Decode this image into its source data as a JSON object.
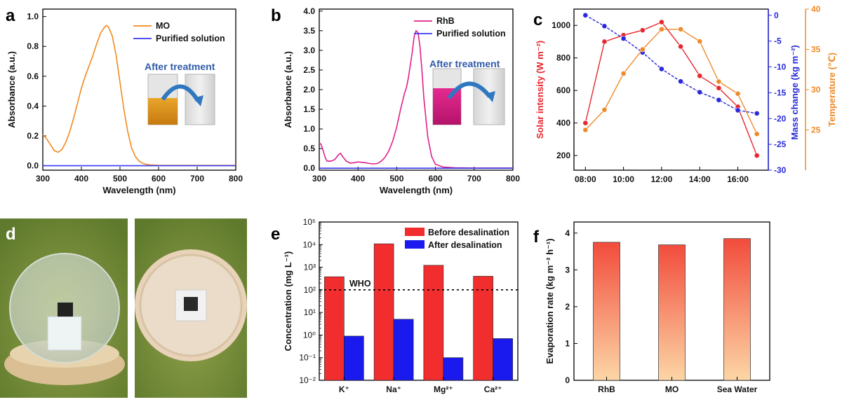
{
  "panels": {
    "a": "a",
    "b": "b",
    "c": "c",
    "d": "d",
    "e": "e",
    "f": "f"
  },
  "colors": {
    "mo": "#f28a1f",
    "purified": "#3a3af0",
    "rhb": "#e0208a",
    "solar": "#e8262d",
    "mass": "#2929d9",
    "temp": "#ef8a2a",
    "before": "#f22d2d",
    "after": "#1a1aee",
    "bar_top": "#f24c3c",
    "bar_bottom": "#fcd6a6",
    "panel_c_left": "#e8262d",
    "panel_c_right": "#ef8a2a",
    "panel_c_mid": "#2929d9"
  },
  "chart_data": [
    {
      "id": "a",
      "type": "line",
      "xlabel": "Wavelength (nm)",
      "ylabel": "Absorbance (a.u.)",
      "xlim": [
        300,
        800
      ],
      "ylim": [
        -0.03,
        1.05
      ],
      "xticks": [
        300,
        400,
        500,
        600,
        700,
        800
      ],
      "yticks": [
        0.0,
        0.2,
        0.4,
        0.6,
        0.8,
        1.0
      ],
      "legend_placement": "top-right",
      "annotation": "After treatment",
      "series": [
        {
          "name": "MO",
          "color_key": "mo",
          "x": [
            300,
            310,
            320,
            330,
            340,
            350,
            360,
            370,
            380,
            390,
            400,
            410,
            420,
            430,
            440,
            450,
            460,
            465,
            470,
            480,
            490,
            500,
            510,
            520,
            530,
            540,
            550,
            560,
            570,
            580,
            600,
            650,
            700,
            800
          ],
          "y": [
            0.21,
            0.18,
            0.14,
            0.1,
            0.09,
            0.11,
            0.16,
            0.23,
            0.32,
            0.42,
            0.52,
            0.6,
            0.67,
            0.74,
            0.82,
            0.89,
            0.93,
            0.94,
            0.93,
            0.87,
            0.74,
            0.56,
            0.38,
            0.23,
            0.12,
            0.06,
            0.03,
            0.015,
            0.008,
            0.005,
            0.003,
            0.002,
            0.002,
            0.002
          ]
        },
        {
          "name": "Purified solution",
          "color_key": "purified",
          "x": [
            300,
            800
          ],
          "y": [
            0.0,
            0.0
          ]
        }
      ]
    },
    {
      "id": "b",
      "type": "line",
      "xlabel": "Wavelength (nm)",
      "ylabel": "Absorbance (a.u.)",
      "xlim": [
        300,
        800
      ],
      "ylim": [
        -0.05,
        4.05
      ],
      "xticks": [
        300,
        400,
        500,
        600,
        700,
        800
      ],
      "yticks": [
        0.0,
        0.5,
        1.0,
        1.5,
        2.0,
        2.5,
        3.0,
        3.5,
        4.0
      ],
      "legend_placement": "top-right",
      "annotation": "After treatment",
      "series": [
        {
          "name": "RhB",
          "color_key": "rhb",
          "x": [
            300,
            305,
            310,
            315,
            320,
            330,
            340,
            350,
            355,
            360,
            370,
            380,
            390,
            400,
            410,
            420,
            430,
            440,
            450,
            460,
            470,
            480,
            490,
            500,
            510,
            520,
            525,
            530,
            540,
            545,
            550,
            555,
            560,
            565,
            570,
            580,
            590,
            600,
            620,
            650,
            700,
            800
          ],
          "y": [
            0.65,
            0.6,
            0.45,
            0.28,
            0.18,
            0.18,
            0.22,
            0.35,
            0.38,
            0.3,
            0.18,
            0.13,
            0.14,
            0.16,
            0.15,
            0.14,
            0.12,
            0.11,
            0.12,
            0.18,
            0.28,
            0.45,
            0.7,
            1.05,
            1.5,
            1.9,
            2.05,
            2.3,
            2.95,
            3.35,
            3.5,
            3.45,
            3.1,
            2.5,
            1.8,
            0.8,
            0.3,
            0.1,
            0.03,
            0.01,
            0.005,
            0.005
          ]
        },
        {
          "name": "Purified solution",
          "color_key": "purified",
          "x": [
            300,
            800
          ],
          "y": [
            0.0,
            0.0
          ]
        }
      ]
    },
    {
      "id": "c",
      "type": "line",
      "x_categories": [
        "08:00",
        "10:00",
        "12:00",
        "14:00",
        "16:00"
      ],
      "x_hours": [
        8,
        9,
        10,
        11,
        12,
        13,
        14,
        15,
        16,
        17
      ],
      "xlim_hours": [
        7.4,
        17.6
      ],
      "axes": [
        {
          "side": "left",
          "label": "Solar intensity (W m⁻²)",
          "color_key": "panel_c_left",
          "ylim": [
            110,
            1100
          ],
          "yticks": [
            200,
            400,
            600,
            800,
            1000
          ]
        },
        {
          "side": "right-inner",
          "label": "Mass change (kg m⁻²)",
          "color_key": "panel_c_mid",
          "ylim": [
            -30,
            1.2
          ],
          "yticks": [
            0,
            -5,
            -10,
            -15,
            -20,
            -25,
            -30
          ]
        },
        {
          "side": "right-outer",
          "label": "Temperature (℃)",
          "color_key": "panel_c_right",
          "ylim": [
            20,
            40
          ],
          "yticks": [
            25,
            30,
            35,
            40
          ]
        }
      ],
      "series": [
        {
          "name": "Solar intensity",
          "axis": 0,
          "color_key": "solar",
          "y": [
            400,
            900,
            940,
            970,
            1020,
            870,
            690,
            615,
            500,
            200
          ]
        },
        {
          "name": "Mass change",
          "axis": 1,
          "color_key": "mass",
          "y": [
            0,
            -2.1,
            -4.5,
            -7.2,
            -10.4,
            -12.8,
            -14.9,
            -16.4,
            -18.4,
            -19.0
          ]
        },
        {
          "name": "Temperature",
          "axis": 2,
          "color_key": "temp",
          "y": [
            25,
            27.5,
            32,
            35,
            37.5,
            37.5,
            36,
            31,
            29.5,
            24.5
          ]
        }
      ]
    },
    {
      "id": "e",
      "type": "bar",
      "scale": "log",
      "categories": [
        "K⁺",
        "Na⁺",
        "Mg²⁺",
        "Ca²⁺"
      ],
      "ylabel": "Concentration (mg L⁻¹)",
      "ylim_exp": [
        -2,
        5
      ],
      "ytick_labels": [
        "10⁻²",
        "10⁻¹",
        "10⁰",
        "10¹",
        "10²",
        "10³",
        "10⁴",
        "10⁵"
      ],
      "reference_line": {
        "label": "WHO",
        "value": 100
      },
      "legend_placement": "top-right",
      "series": [
        {
          "name": "Before desalination",
          "color_key": "before",
          "values": [
            380,
            10900,
            1220,
            400
          ]
        },
        {
          "name": "After desalination",
          "color_key": "after",
          "values": [
            0.9,
            5.0,
            0.1,
            0.7
          ]
        }
      ]
    },
    {
      "id": "f",
      "type": "bar",
      "categories": [
        "RhB",
        "MO",
        "Sea Water"
      ],
      "values": [
        3.75,
        3.68,
        3.85
      ],
      "ylabel": "Evaporation  rate (kg m⁻² h⁻¹)",
      "ylim": [
        0,
        4.3
      ],
      "yticks": [
        0,
        1,
        2,
        3,
        4
      ]
    }
  ]
}
